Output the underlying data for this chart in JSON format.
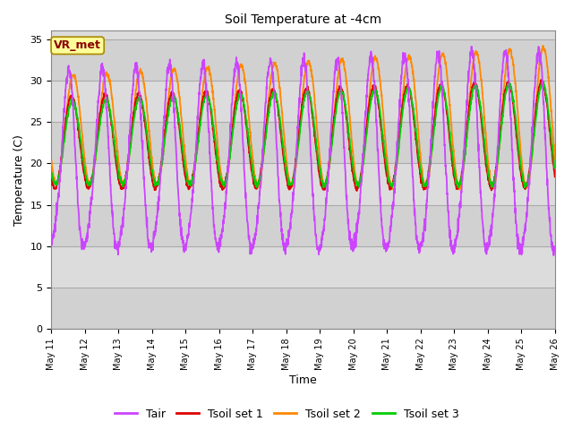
{
  "title": "Soil Temperature at -4cm",
  "xlabel": "Time",
  "ylabel": "Temperature (C)",
  "ylim": [
    0,
    36
  ],
  "yticks": [
    0,
    5,
    10,
    15,
    20,
    25,
    30,
    35
  ],
  "annotation": "VR_met",
  "annotation_color": "#8B0000",
  "annotation_bg": "#FFFF99",
  "colors": {
    "Tair": "#CC44FF",
    "Tsoil1": "#DD0000",
    "Tsoil2": "#FF8800",
    "Tsoil3": "#00CC00"
  },
  "background_plot": "#DCDCDC",
  "background_band1": "#D0D0D0",
  "background_fig": "#FFFFFF",
  "grid_color": "#AAAAAA",
  "n_days": 15,
  "points_per_day": 144,
  "start_day": 11,
  "month": "May",
  "legend_labels": [
    "Tair",
    "Tsoil set 1",
    "Tsoil set 2",
    "Tsoil set 3"
  ]
}
